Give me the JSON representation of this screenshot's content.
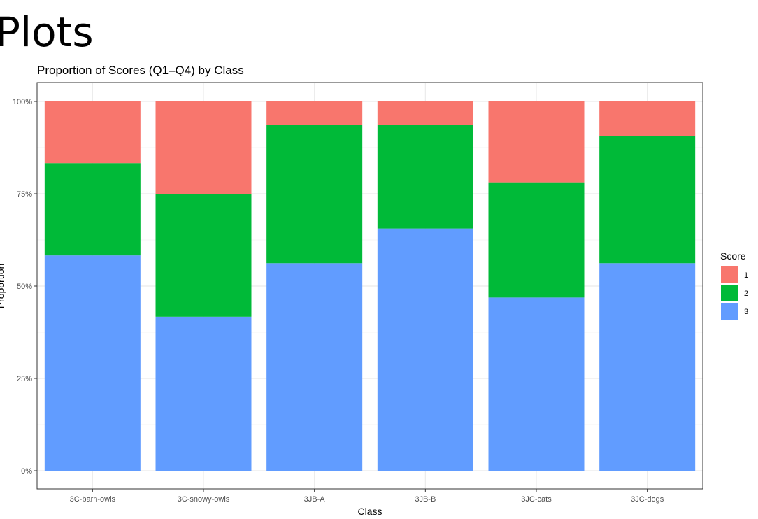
{
  "slide": {
    "title": "Plots"
  },
  "chart_data": {
    "type": "bar",
    "stacked": true,
    "normalized": true,
    "title": "Proportion of Scores (Q1–Q4) by Class",
    "xlabel": "Class",
    "ylabel": "Proportion",
    "categories": [
      "3C-barn-owls",
      "3C-snowy-owls",
      "3JB-A",
      "3JB-B",
      "3JC-cats",
      "3JC-dogs"
    ],
    "series": [
      {
        "name": "3",
        "color": "#619CFF",
        "values": [
          0.583,
          0.417,
          0.562,
          0.656,
          0.469,
          0.562
        ]
      },
      {
        "name": "2",
        "color": "#00BA38",
        "values": [
          0.25,
          0.333,
          0.375,
          0.281,
          0.312,
          0.344
        ]
      },
      {
        "name": "1",
        "color": "#F8766D",
        "values": [
          0.167,
          0.25,
          0.063,
          0.063,
          0.219,
          0.094
        ]
      }
    ],
    "ylim": [
      0,
      1
    ],
    "yticks": [
      0,
      0.25,
      0.5,
      0.75,
      1
    ],
    "ytick_labels": [
      "0%",
      "25%",
      "50%",
      "75%",
      "100%"
    ],
    "legend": {
      "title": "Score",
      "position": "right",
      "entries": [
        {
          "label": "1",
          "color": "#F8766D"
        },
        {
          "label": "2",
          "color": "#00BA38"
        },
        {
          "label": "3",
          "color": "#619CFF"
        }
      ]
    },
    "grid": true
  }
}
